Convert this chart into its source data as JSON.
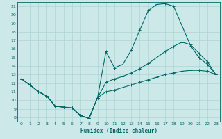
{
  "xlabel": "Humidex (Indice chaleur)",
  "bg_color": "#cce8e8",
  "line_color": "#006868",
  "grid_color": "#aad4d4",
  "xlim": [
    -0.5,
    23.5
  ],
  "ylim": [
    7.5,
    21.5
  ],
  "xticks": [
    0,
    1,
    2,
    3,
    4,
    5,
    6,
    7,
    8,
    9,
    10,
    11,
    12,
    13,
    14,
    15,
    16,
    17,
    18,
    19,
    20,
    21,
    22,
    23
  ],
  "yticks": [
    8,
    9,
    10,
    11,
    12,
    13,
    14,
    15,
    16,
    17,
    18,
    19,
    20,
    21
  ],
  "line1_x": [
    0,
    1,
    2,
    3,
    4,
    5,
    6,
    7,
    8,
    9,
    10,
    11,
    12,
    13,
    14,
    15,
    16,
    17,
    18,
    19,
    20,
    21,
    22,
    23
  ],
  "line1_y": [
    12.5,
    11.8,
    11.0,
    10.5,
    9.3,
    9.2,
    9.1,
    8.2,
    7.9,
    10.3,
    15.7,
    13.8,
    14.2,
    15.9,
    18.2,
    20.5,
    21.2,
    21.3,
    21.0,
    18.7,
    16.4,
    15.0,
    14.2,
    13.0
  ],
  "line2_x": [
    0,
    1,
    2,
    3,
    4,
    5,
    6,
    7,
    8,
    9,
    10,
    11,
    12,
    13,
    14,
    15,
    16,
    17,
    18,
    19,
    20,
    21,
    22,
    23
  ],
  "line2_y": [
    12.5,
    11.8,
    11.0,
    10.5,
    9.3,
    9.2,
    9.1,
    8.2,
    7.9,
    10.3,
    12.1,
    12.5,
    12.8,
    13.2,
    13.7,
    14.3,
    15.0,
    15.7,
    16.3,
    16.8,
    16.5,
    15.5,
    14.5,
    13.0
  ],
  "line3_x": [
    0,
    1,
    2,
    3,
    4,
    5,
    6,
    7,
    8,
    9,
    10,
    11,
    12,
    13,
    14,
    15,
    16,
    17,
    18,
    19,
    20,
    21,
    22,
    23
  ],
  "line3_y": [
    12.5,
    11.8,
    11.0,
    10.5,
    9.3,
    9.2,
    9.1,
    8.2,
    7.9,
    10.3,
    11.0,
    11.2,
    11.5,
    11.8,
    12.1,
    12.4,
    12.7,
    13.0,
    13.2,
    13.4,
    13.5,
    13.5,
    13.4,
    13.0
  ]
}
